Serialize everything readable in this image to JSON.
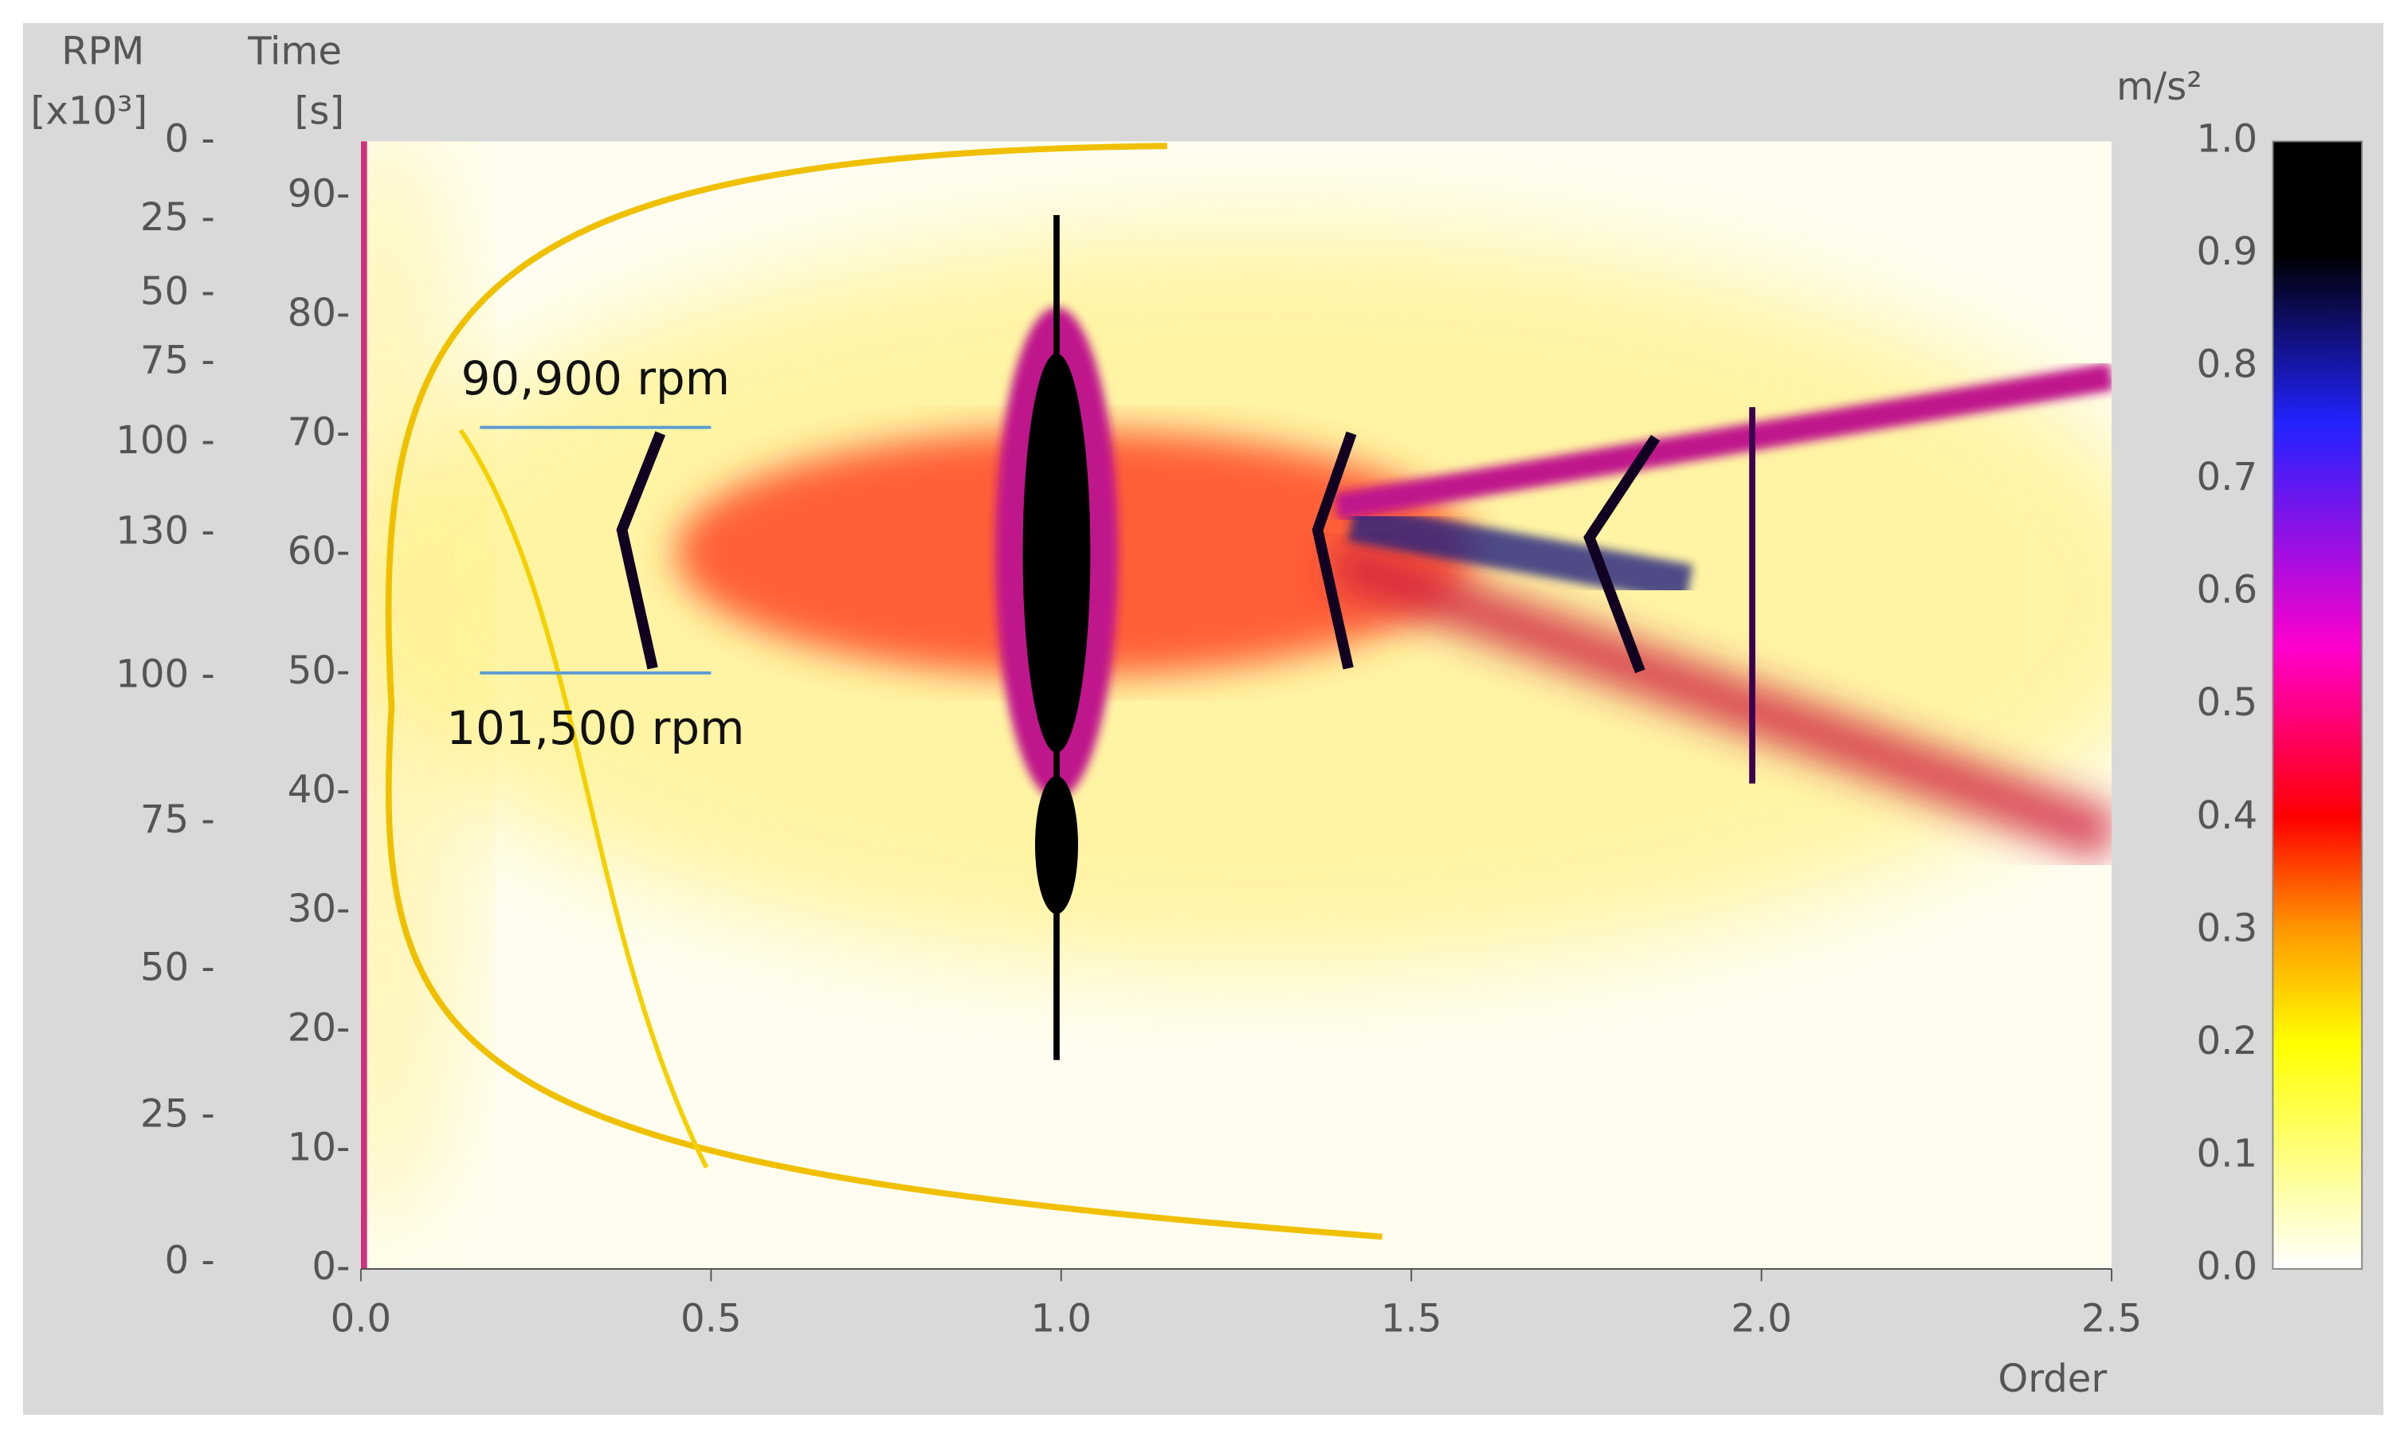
{
  "chart_data": {
    "type": "heatmap",
    "x_label": "Order",
    "y_label": [
      "Time",
      "[s]"
    ],
    "xlim": [
      0,
      2.5
    ],
    "xticks": [
      {
        "value": 0,
        "label": "0.0"
      },
      0.5,
      {
        "value": 1,
        "label": "1.0"
      },
      1.5,
      {
        "value": 2,
        "label": "2.0"
      },
      2.5
    ],
    "ylim": [
      0,
      94.6
    ],
    "yticks": [
      {
        "value": 0,
        "label": "0-"
      },
      {
        "value": 10,
        "label": "10-"
      },
      {
        "value": 20,
        "label": "20-"
      },
      {
        "value": 30,
        "label": "30-"
      },
      {
        "value": 40,
        "label": "40-"
      },
      {
        "value": 50,
        "label": "50-"
      },
      {
        "value": 60,
        "label": "60-"
      },
      {
        "value": 70,
        "label": "70-"
      },
      {
        "value": 80,
        "label": "80-"
      },
      {
        "value": 90,
        "label": "90-"
      }
    ],
    "rpm_axis": {
      "label": [
        "RPM",
        "[x10³]"
      ],
      "ticks": [
        {
          "value": 0,
          "label": "0 -"
        },
        {
          "value": 25,
          "label": "25 -"
        },
        {
          "value": 50,
          "label": "50 -"
        },
        {
          "value": 75,
          "label": "75 -"
        },
        {
          "value": 100,
          "label": "100 -"
        },
        {
          "value": 130,
          "label": "130 -"
        },
        {
          "value": 100,
          "label": "100 -"
        },
        {
          "value": 75,
          "label": "75 -"
        },
        {
          "value": 50,
          "label": "50 -"
        },
        {
          "value": 25,
          "label": "25 -"
        },
        {
          "value": 0,
          "label": "0 -"
        }
      ],
      "tick_times": [
        94.6,
        88.0,
        81.8,
        76.0,
        69.3,
        61.7,
        49.7,
        37.5,
        25.1,
        12.8,
        0.5
      ]
    },
    "colorbar": {
      "label": "m/s²",
      "clim": [
        0,
        1
      ],
      "ticks": [
        {
          "value": 0,
          "label": "0.0"
        },
        0.1,
        0.2,
        0.3,
        0.4,
        0.5,
        0.6,
        0.7,
        0.8,
        0.9,
        {
          "value": 1,
          "label": "1.0"
        }
      ],
      "colormap": [
        {
          "value": 0,
          "color": "#ffffff"
        },
        {
          "value": 0.2,
          "color": "#ffff00"
        },
        {
          "value": 0.3,
          "color": "#ff9900"
        },
        {
          "value": 0.4,
          "color": "#ff0000"
        },
        {
          "value": 0.55,
          "color": "#ff00cc"
        },
        {
          "value": 0.75,
          "color": "#2222ff"
        },
        {
          "value": 0.9,
          "color": "#000000"
        }
      ]
    },
    "annotations": [
      {
        "text": "90,900 rpm",
        "time": 70.6,
        "x_from": 0.17,
        "x_to": 0.5
      },
      {
        "text": "101,500 rpm",
        "time": 50.0,
        "x_from": 0.17,
        "x_to": 0.5
      }
    ]
  }
}
